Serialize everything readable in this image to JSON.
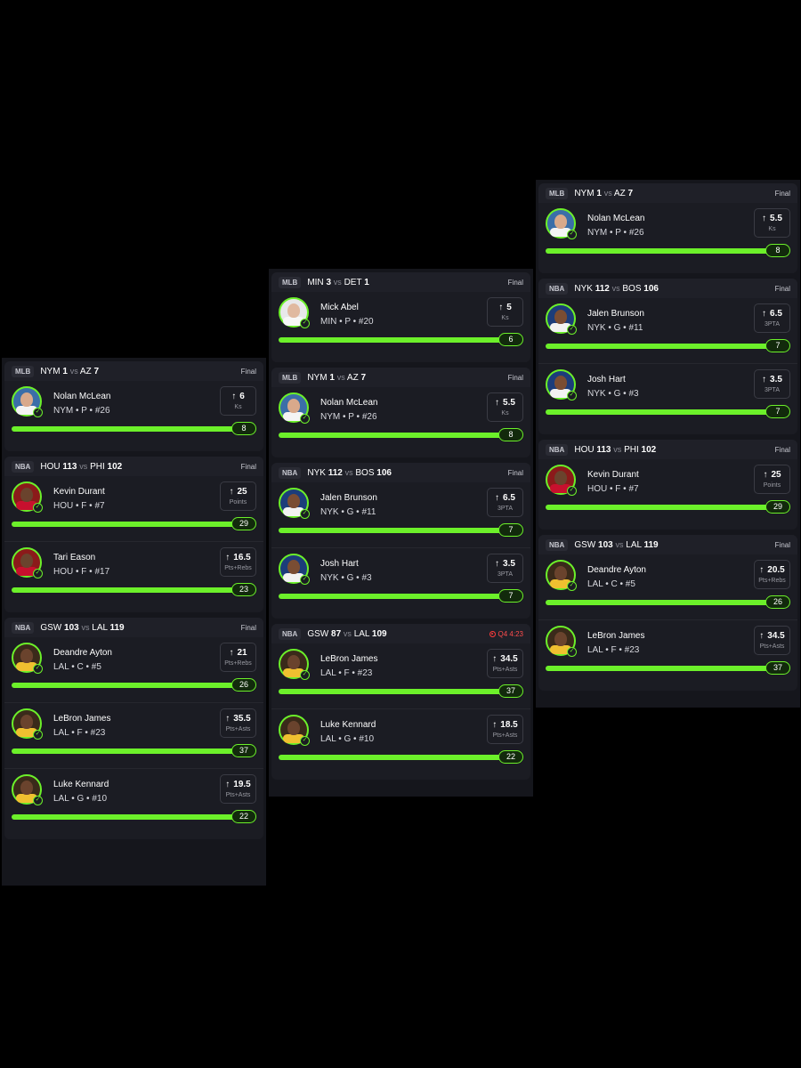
{
  "colors": {
    "background": "#000000",
    "accent_green": "#6cf02a",
    "card": "#1b1c23",
    "live_red": "#ff3b3b"
  },
  "columns": [
    {
      "games": [
        {
          "league": "MLB",
          "team1": "NYM",
          "score1": "1",
          "vs": "vs",
          "team2": "AZ",
          "score2": "7",
          "status": "Final",
          "picks": [
            {
              "name": "Nolan McLean",
              "meta": "NYM • P • #26",
              "line": "6",
              "stat": "Ks",
              "result": "8",
              "progress": 1,
              "avatar": "mets"
            }
          ]
        },
        {
          "league": "NBA",
          "team1": "HOU",
          "score1": "113",
          "vs": "vs",
          "team2": "PHI",
          "score2": "102",
          "status": "Final",
          "picks": [
            {
              "name": "Kevin Durant",
              "meta": "HOU • F • #7",
              "line": "25",
              "stat": "Points",
              "result": "29",
              "progress": 1,
              "avatar": "rockets"
            },
            {
              "name": "Tari Eason",
              "meta": "HOU • F • #17",
              "line": "16.5",
              "stat": "Pts+Rebs",
              "result": "23",
              "progress": 1,
              "avatar": "rockets"
            }
          ]
        },
        {
          "league": "NBA",
          "team1": "GSW",
          "score1": "103",
          "vs": "vs",
          "team2": "LAL",
          "score2": "119",
          "status": "Final",
          "picks": [
            {
              "name": "Deandre Ayton",
              "meta": "LAL • C • #5",
              "line": "21",
              "stat": "Pts+Rebs",
              "result": "26",
              "progress": 1,
              "avatar": "lakers"
            },
            {
              "name": "LeBron James",
              "meta": "LAL • F • #23",
              "line": "35.5",
              "stat": "Pts+Asts",
              "result": "37",
              "progress": 1,
              "avatar": "lakers"
            },
            {
              "name": "Luke Kennard",
              "meta": "LAL • G • #10",
              "line": "19.5",
              "stat": "Pts+Asts",
              "result": "22",
              "progress": 1,
              "avatar": "lakers"
            }
          ]
        }
      ]
    },
    {
      "games": [
        {
          "league": "MLB",
          "team1": "MIN",
          "score1": "3",
          "vs": "vs",
          "team2": "DET",
          "score2": "1",
          "status": "Final",
          "picks": [
            {
              "name": "Mick Abel",
              "meta": "MIN • P • #20",
              "line": "5",
              "stat": "Ks",
              "result": "6",
              "progress": 1,
              "avatar": "twins"
            }
          ]
        },
        {
          "league": "MLB",
          "team1": "NYM",
          "score1": "1",
          "vs": "vs",
          "team2": "AZ",
          "score2": "7",
          "status": "Final",
          "picks": [
            {
              "name": "Nolan McLean",
              "meta": "NYM • P • #26",
              "line": "5.5",
              "stat": "Ks",
              "result": "8",
              "progress": 1,
              "avatar": "mets"
            }
          ]
        },
        {
          "league": "NBA",
          "team1": "NYK",
          "score1": "112",
          "vs": "vs",
          "team2": "BOS",
          "score2": "106",
          "status": "Final",
          "picks": [
            {
              "name": "Jalen Brunson",
              "meta": "NYK • G • #11",
              "line": "6.5",
              "stat": "3PTA",
              "result": "7",
              "progress": 1,
              "avatar": "knicks"
            },
            {
              "name": "Josh Hart",
              "meta": "NYK • G • #3",
              "line": "3.5",
              "stat": "3PTA",
              "result": "7",
              "progress": 1,
              "avatar": "knicks"
            }
          ]
        },
        {
          "league": "NBA",
          "team1": "GSW",
          "score1": "87",
          "vs": "vs",
          "team2": "LAL",
          "score2": "109",
          "status": "Q4 4:23",
          "live": true,
          "picks": [
            {
              "name": "LeBron James",
              "meta": "LAL • F • #23",
              "line": "34.5",
              "stat": "Pts+Asts",
              "result": "37",
              "progress": 1,
              "avatar": "lakers"
            },
            {
              "name": "Luke Kennard",
              "meta": "LAL • G • #10",
              "line": "18.5",
              "stat": "Pts+Asts",
              "result": "22",
              "progress": 1,
              "avatar": "lakers"
            }
          ]
        }
      ]
    },
    {
      "games": [
        {
          "league": "MLB",
          "team1": "NYM",
          "score1": "1",
          "vs": "vs",
          "team2": "AZ",
          "score2": "7",
          "status": "Final",
          "picks": [
            {
              "name": "Nolan McLean",
              "meta": "NYM • P • #26",
              "line": "5.5",
              "stat": "Ks",
              "result": "8",
              "progress": 1,
              "avatar": "mets"
            }
          ]
        },
        {
          "league": "NBA",
          "team1": "NYK",
          "score1": "112",
          "vs": "vs",
          "team2": "BOS",
          "score2": "106",
          "status": "Final",
          "picks": [
            {
              "name": "Jalen Brunson",
              "meta": "NYK • G • #11",
              "line": "6.5",
              "stat": "3PTA",
              "result": "7",
              "progress": 1,
              "avatar": "knicks"
            },
            {
              "name": "Josh Hart",
              "meta": "NYK • G • #3",
              "line": "3.5",
              "stat": "3PTA",
              "result": "7",
              "progress": 1,
              "avatar": "knicks"
            }
          ]
        },
        {
          "league": "NBA",
          "team1": "HOU",
          "score1": "113",
          "vs": "vs",
          "team2": "PHI",
          "score2": "102",
          "status": "Final",
          "picks": [
            {
              "name": "Kevin Durant",
              "meta": "HOU • F • #7",
              "line": "25",
              "stat": "Points",
              "result": "29",
              "progress": 1,
              "avatar": "rockets"
            }
          ]
        },
        {
          "league": "NBA",
          "team1": "GSW",
          "score1": "103",
          "vs": "vs",
          "team2": "LAL",
          "score2": "119",
          "status": "Final",
          "picks": [
            {
              "name": "Deandre Ayton",
              "meta": "LAL • C • #5",
              "line": "20.5",
              "stat": "Pts+Rebs",
              "result": "26",
              "progress": 1,
              "avatar": "lakers"
            },
            {
              "name": "LeBron James",
              "meta": "LAL • F • #23",
              "line": "34.5",
              "stat": "Pts+Asts",
              "result": "37",
              "progress": 1,
              "avatar": "lakers"
            }
          ]
        }
      ]
    }
  ]
}
